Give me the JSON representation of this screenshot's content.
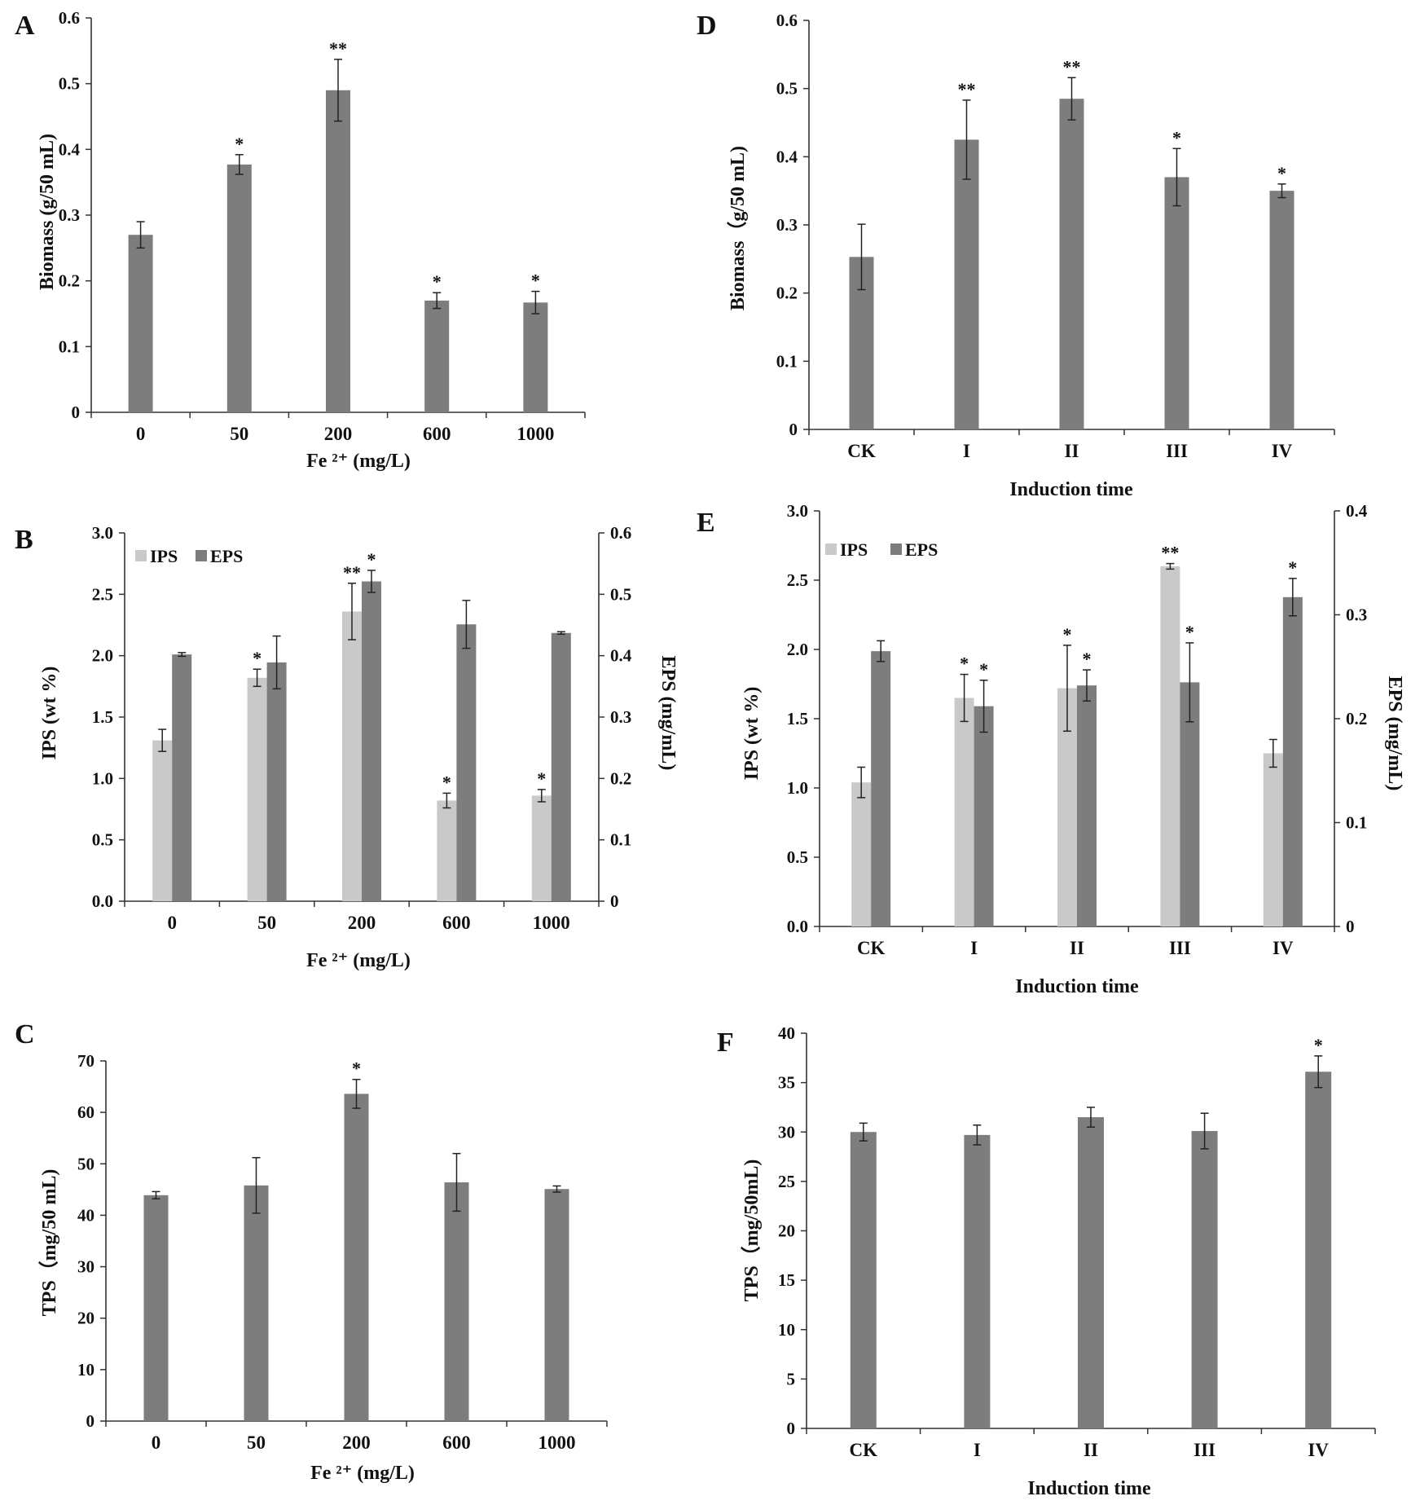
{
  "colors": {
    "dark": "#7d7d7d",
    "light": "#c9c9c9",
    "axis": "#333333",
    "error": "#222222"
  },
  "panels": [
    {
      "id": "A",
      "letter": "A",
      "categories": [
        "0",
        "50",
        "200",
        "600",
        "1000"
      ],
      "xlabel": "Fe ²⁺ (mg/L)",
      "ylabel": "Biomass (g/50 mL)",
      "yticks": [
        "0",
        "0.1",
        "0.2",
        "0.3",
        "0.4",
        "0.5",
        "0.6"
      ],
      "ylim": [
        0,
        0.6
      ],
      "series": [
        {
          "name": "Biomass",
          "color": "#7d7d7d",
          "axis": "left",
          "values": [
            0.27,
            0.377,
            0.49,
            0.17,
            0.167
          ],
          "errors": [
            0.02,
            0.015,
            0.047,
            0.012,
            0.017
          ],
          "stars": [
            "",
            "*",
            "**",
            "*",
            "*"
          ]
        }
      ]
    },
    {
      "id": "B",
      "letter": "B",
      "categories": [
        "0",
        "50",
        "200",
        "600",
        "1000"
      ],
      "xlabel": "Fe ²⁺ (mg/L)",
      "ylabel": "IPS (wt %)",
      "y2label": "EPS (mg/mL)",
      "yticks": [
        "0.0",
        "0.5",
        "1.0",
        "1.5",
        "2.0",
        "2.5",
        "3.0"
      ],
      "ylim": [
        0,
        3.0
      ],
      "y2ticks": [
        "0",
        "0.1",
        "0.2",
        "0.3",
        "0.4",
        "0.5",
        "0.6"
      ],
      "y2lim": [
        0,
        0.6
      ],
      "legend": [
        {
          "label": "IPS",
          "color": "#c9c9c9"
        },
        {
          "label": "EPS",
          "color": "#7d7d7d"
        }
      ],
      "series": [
        {
          "name": "IPS",
          "color": "#c9c9c9",
          "axis": "left",
          "values": [
            1.31,
            1.82,
            2.36,
            0.82,
            0.86
          ],
          "errors": [
            0.09,
            0.07,
            0.23,
            0.06,
            0.05
          ],
          "stars": [
            "",
            "*",
            "**",
            "*",
            "*"
          ]
        },
        {
          "name": "EPS",
          "color": "#7d7d7d",
          "axis": "right",
          "values": [
            0.402,
            0.389,
            0.521,
            0.451,
            0.437
          ],
          "errors": [
            0.003,
            0.043,
            0.018,
            0.039,
            0.002
          ],
          "stars": [
            "",
            "",
            "*",
            "",
            ""
          ]
        }
      ]
    },
    {
      "id": "C",
      "letter": "C",
      "categories": [
        "0",
        "50",
        "200",
        "600",
        "1000"
      ],
      "xlabel": "Fe ²⁺ (mg/L)",
      "ylabel": "TPS（mg/50 mL)",
      "yticks": [
        "0",
        "10",
        "20",
        "30",
        "40",
        "50",
        "60",
        "70"
      ],
      "ylim": [
        0,
        70
      ],
      "series": [
        {
          "name": "TPS",
          "color": "#7d7d7d",
          "axis": "left",
          "values": [
            43.9,
            45.8,
            63.6,
            46.4,
            45.1
          ],
          "errors": [
            0.7,
            5.4,
            2.8,
            5.6,
            0.6
          ],
          "stars": [
            "",
            "",
            "*",
            "",
            ""
          ]
        }
      ]
    },
    {
      "id": "D",
      "letter": "D",
      "categories": [
        "CK",
        "I",
        "II",
        "III",
        "IV"
      ],
      "xlabel": "Induction time",
      "ylabel": "Biomass（g/50 mL)",
      "yticks": [
        "0",
        "0.1",
        "0.2",
        "0.3",
        "0.4",
        "0.5",
        "0.6"
      ],
      "ylim": [
        0,
        0.6
      ],
      "series": [
        {
          "name": "Biomass",
          "color": "#7d7d7d",
          "axis": "left",
          "values": [
            0.253,
            0.425,
            0.485,
            0.37,
            0.35
          ],
          "errors": [
            0.048,
            0.058,
            0.031,
            0.042,
            0.01
          ],
          "stars": [
            "",
            "**",
            "**",
            "*",
            "*"
          ]
        }
      ]
    },
    {
      "id": "E",
      "letter": "E",
      "categories": [
        "CK",
        "I",
        "II",
        "III",
        "IV"
      ],
      "xlabel": "Induction time",
      "ylabel": "IPS (wt %)",
      "y2label": "EPS (mg/mL)",
      "yticks": [
        "0.0",
        "0.5",
        "1.0",
        "1.5",
        "2.0",
        "2.5",
        "3.0"
      ],
      "ylim": [
        0,
        3.0
      ],
      "y2ticks": [
        "0",
        "0.1",
        "0.2",
        "0.3",
        "0.4"
      ],
      "y2lim": [
        0,
        0.4
      ],
      "legend": [
        {
          "label": "IPS",
          "color": "#c9c9c9"
        },
        {
          "label": "EPS",
          "color": "#7d7d7d"
        }
      ],
      "series": [
        {
          "name": "IPS",
          "color": "#c9c9c9",
          "axis": "left",
          "values": [
            1.04,
            1.65,
            1.72,
            2.6,
            1.25
          ],
          "errors": [
            0.11,
            0.17,
            0.31,
            0.02,
            0.1
          ],
          "stars": [
            "",
            "*",
            "*",
            "**",
            ""
          ]
        },
        {
          "name": "EPS",
          "color": "#7d7d7d",
          "axis": "right",
          "values": [
            0.265,
            0.212,
            0.232,
            0.235,
            0.317
          ],
          "errors": [
            0.01,
            0.025,
            0.015,
            0.038,
            0.018
          ],
          "stars": [
            "",
            "*",
            "*",
            "*",
            "*"
          ]
        }
      ]
    },
    {
      "id": "F",
      "letter": "F",
      "categories": [
        "CK",
        "I",
        "II",
        "III",
        "IV"
      ],
      "xlabel": "Induction time",
      "ylabel": "TPS（mg/50mL)",
      "yticks": [
        "0",
        "5",
        "10",
        "15",
        "20",
        "25",
        "30",
        "35",
        "40"
      ],
      "ylim": [
        0,
        40
      ],
      "series": [
        {
          "name": "TPS",
          "color": "#7d7d7d",
          "axis": "left",
          "values": [
            30.0,
            29.7,
            31.5,
            30.1,
            36.1
          ],
          "errors": [
            0.9,
            1.0,
            1.0,
            1.8,
            1.6
          ],
          "stars": [
            "",
            "",
            "",
            "",
            "*"
          ]
        }
      ]
    }
  ]
}
